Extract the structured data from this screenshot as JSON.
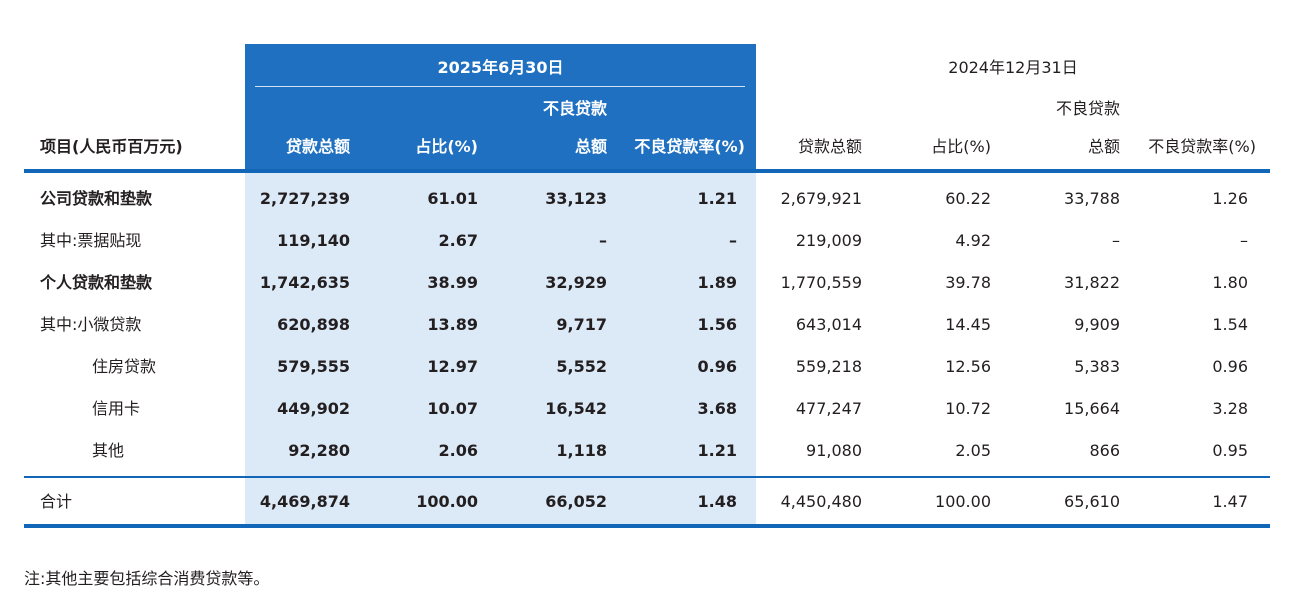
{
  "period_current": "2025年6月30日",
  "period_prior": "2024年12月31日",
  "columns": {
    "item": "项目(人民币百万元)",
    "total": "贷款总额",
    "share": "占比(%)",
    "npl_line1": "不良贷款",
    "npl_line2": "总额",
    "npl_ratio": "不良贷款率(%)"
  },
  "rows": [
    {
      "label": "公司贷款和垫款",
      "bold": true,
      "cur": [
        "2,727,239",
        "61.01",
        "33,123",
        "1.21"
      ],
      "prior": [
        "2,679,921",
        "60.22",
        "33,788",
        "1.26"
      ]
    },
    {
      "label": "其中:票据贴现",
      "bold": false,
      "cur": [
        "119,140",
        "2.67",
        "–",
        "–"
      ],
      "prior": [
        "219,009",
        "4.92",
        "–",
        "–"
      ]
    },
    {
      "label": "个人贷款和垫款",
      "bold": true,
      "cur": [
        "1,742,635",
        "38.99",
        "32,929",
        "1.89"
      ],
      "prior": [
        "1,770,559",
        "39.78",
        "31,822",
        "1.80"
      ]
    },
    {
      "label": "其中:小微贷款",
      "bold": false,
      "cur": [
        "620,898",
        "13.89",
        "9,717",
        "1.56"
      ],
      "prior": [
        "643,014",
        "14.45",
        "9,909",
        "1.54"
      ]
    },
    {
      "label": "住房贷款",
      "bold": false,
      "cur": [
        "579,555",
        "12.97",
        "5,552",
        "0.96"
      ],
      "prior": [
        "559,218",
        "12.56",
        "5,383",
        "0.96"
      ]
    },
    {
      "label": "信用卡",
      "bold": false,
      "cur": [
        "449,902",
        "10.07",
        "16,542",
        "3.68"
      ],
      "prior": [
        "477,247",
        "10.72",
        "15,664",
        "3.28"
      ]
    },
    {
      "label": "其他",
      "bold": false,
      "cur": [
        "92,280",
        "2.06",
        "1,118",
        "1.21"
      ],
      "prior": [
        "91,080",
        "2.05",
        "866",
        "0.95"
      ]
    }
  ],
  "total_row": {
    "label": "合计",
    "cur": [
      "4,469,874",
      "100.00",
      "66,052",
      "1.48"
    ],
    "prior": [
      "4,450,480",
      "100.00",
      "65,610",
      "1.47"
    ]
  },
  "note": "注:其他主要包括综合消费贷款等。",
  "colors": {
    "header_blue": "#1f70c1",
    "band_light": "#dce9f7",
    "rule_blue": "#1166b8"
  }
}
